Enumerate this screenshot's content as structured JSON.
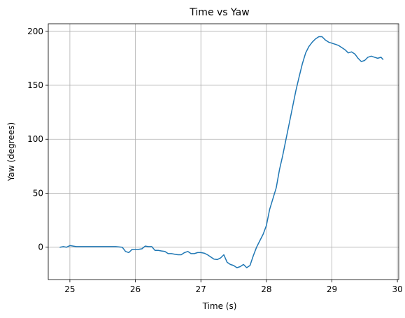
{
  "chart_data": {
    "type": "line",
    "title": "Time vs Yaw",
    "xlabel": "Time (s)",
    "ylabel": "Yaw (degrees)",
    "xlim": [
      24.67,
      30.02
    ],
    "ylim": [
      -30,
      207
    ],
    "xticks": [
      25,
      26,
      27,
      28,
      29,
      30
    ],
    "yticks": [
      0,
      50,
      100,
      150,
      200
    ],
    "grid": true,
    "color": "#1f77b4",
    "series": [
      {
        "x": [
          24.85,
          24.9,
          24.95,
          25.0,
          25.05,
          25.1,
          25.2,
          25.3,
          25.4,
          25.5,
          25.6,
          25.7,
          25.8,
          25.85,
          25.9,
          25.95,
          26.0,
          26.05,
          26.1,
          26.15,
          26.2,
          26.25,
          26.3,
          26.35,
          26.4,
          26.45,
          26.5,
          26.55,
          26.6,
          26.65,
          26.7,
          26.75,
          26.8,
          26.85,
          26.9,
          26.95,
          27.0,
          27.05,
          27.1,
          27.15,
          27.2,
          27.25,
          27.3,
          27.35,
          27.4,
          27.45,
          27.5,
          27.55,
          27.6,
          27.65,
          27.7,
          27.75,
          27.8,
          27.85,
          27.9,
          27.95,
          28.0,
          28.05,
          28.1,
          28.15,
          28.2,
          28.25,
          28.3,
          28.35,
          28.4,
          28.45,
          28.5,
          28.55,
          28.6,
          28.65,
          28.7,
          28.75,
          28.8,
          28.85,
          28.9,
          28.95,
          29.0,
          29.05,
          29.1,
          29.15,
          29.2,
          29.25,
          29.3,
          29.35,
          29.4,
          29.45,
          29.5,
          29.55,
          29.6,
          29.65,
          29.7,
          29.75,
          29.78
        ],
        "y": [
          0,
          0.5,
          0,
          1.5,
          1,
          0.5,
          0.5,
          0.5,
          0.5,
          0.5,
          0.5,
          0.5,
          0,
          -4,
          -5,
          -2,
          -2,
          -2,
          -1.5,
          1,
          0.5,
          0.5,
          -3,
          -3,
          -3.5,
          -4,
          -6,
          -6,
          -6.5,
          -7,
          -7,
          -5,
          -4,
          -6,
          -6,
          -5,
          -5,
          -5.5,
          -7,
          -9,
          -11,
          -11.5,
          -10,
          -7,
          -14,
          -16,
          -17,
          -19,
          -18,
          -16,
          -19,
          -17,
          -8,
          0,
          6,
          12,
          20,
          35,
          45,
          55,
          72,
          85,
          100,
          115,
          130,
          145,
          158,
          170,
          180,
          186,
          190,
          193,
          195,
          195,
          192,
          190,
          189,
          188,
          187,
          185,
          183,
          180,
          181,
          179,
          175,
          172,
          173,
          176,
          177,
          176,
          175,
          176,
          174
        ]
      }
    ]
  }
}
